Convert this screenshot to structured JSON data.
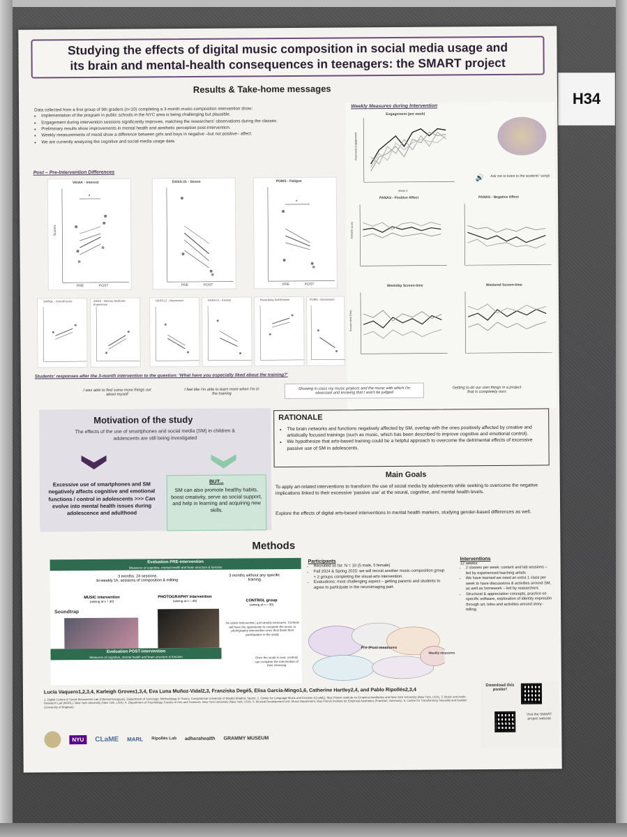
{
  "booth_tag": "H34",
  "poster": {
    "title_line1": "Studying the effects of digital music composition in social media usage and",
    "title_line2": "its brain and mental-health consequences in teenagers: the SMART project",
    "results": {
      "heading": "Results & Take-home messages",
      "intro": "Data collected from a first group of 9th graders (n=10) completing a 3-month music-composition intervention show:",
      "bullets": [
        "Implementation of the program in public schools in the NYC area is being challenging but plausible.",
        "Engagement during intervention sessions significantly improves, matching the researchers' observations during the classes.",
        "Preliminary results show improvements in mental health and aesthetic perception post-intervention.",
        "Weekly measurements of mood show a difference between girls and boys in negative –but not positive– affect.",
        "We are currently analyzing the cognitive and social-media usage data."
      ],
      "post_pre_heading": "Post – Pre-Intervention Differences",
      "plot_titles": [
        "VAIAK - Interest",
        "DASS-21 - Stress",
        "POMS - Fatigue"
      ],
      "small_plot_titles": [
        "SWSQL - Overall score",
        "AIN16 - Intrinsic Aesthetic Experience",
        "DASS-21 - Depression",
        "DASS-21 - Anxiety",
        "Rosenberg Self-Esteem",
        "POMS - Depression"
      ],
      "axis_pre": "PRE",
      "axis_post": "POST",
      "axis_scores": "Scores",
      "weekly_heading": "Weekly Measures during Intervention",
      "engagement_title": "Engagement (per week)",
      "engagement_ylabel": "Assessed engagement",
      "week_label": "Week #",
      "ask_me": "Ask me to listen to the students' songs",
      "panas_pos": "PANAS - Positive Affect",
      "panas_neg": "PANAS - Negative Affect",
      "panas_ylabel": "PANAS score",
      "screen_weekday": "Weekday Screen-time",
      "screen_weekend": "Weekend Screen-time",
      "screen_ylabel": "Screen time (hrs)",
      "students_heading": "Students' responses after the 3-month intervention to the question: 'What have you especially liked about the training?'",
      "quotes": [
        "I was able to find some more things out about myself",
        "I feel like I'm able to learn more when I'm in the training",
        "Showing in class my music projects and the music with which I'm obsessed and knowing that I won't be judged",
        "Getting to do our own things in a project that is completely ours"
      ]
    },
    "motivation": {
      "heading": "Motivation of the study",
      "intro": "The effects of the use of smartphones and social media (SM) in children & adolescents are still being investigated",
      "left_text": "Excessive use of smartphones and SM negatively affects cognitive and emotional functions / control in adolescents >>> Can evolve into mental health issues during adolescence and adulthood",
      "but": "BUT...",
      "right_text": "SM can also promote healthy habits, boost creativity, serve as social support, and help in learning and acquiring new skills."
    },
    "rationale": {
      "heading": "RATIONALE",
      "bullets": [
        "The brain networks and functions negatively affected by SM, overlap with the ones positively affected by creative and artistically focused trainings (such as music, which has been described to improve cognitive and emotional control).",
        "We hypothesize that arts-based training could be a helpful approach to overcome the detrimental effects of excessive passive use of SM in adolescents."
      ]
    },
    "goals": {
      "heading": "Main Goals",
      "p1": "To apply art-related interventions to transform the use of social media by adolescents while seeking to overcome the negative implications linked to their excessive 'passive use' at the neural, cognitive, and mental health levels.",
      "p2": "Explore the effects of digital arts-based interventions in mental health markers, studying gender-based differences as well."
    },
    "methods": {
      "heading": "Methods",
      "eval_pre": "Evaluation PRE-intervention",
      "eval_pre_sub": "Measures of cognitive, mental-health and brain structure & function",
      "arm1_head": "3 months: 24 sessions",
      "arm1_sub": "bi-weekly 1h. sessions of composition & editing",
      "arm2_head": "3 months without any specific training",
      "music_int": "MUSIC intervention",
      "music_sub": "(aiming at n = 30)",
      "photo_int": "PHOTOGRAPHY intervention",
      "photo_sub": "(aiming at n = 30)",
      "control": "CONTROL group",
      "control_sub": "(aiming at n = 30)",
      "control_note": "No active intervention, just weekly measures. Controls will have the opportunity to complete the music or photography intervention once they finish their participation in the study.",
      "soundtrap": "Soundtrap",
      "eval_post": "Evaluation POST-intervention",
      "eval_post_sub": "Measures of cognitive, mental health and brain structure & function",
      "post_note": "Once the study is over, controls can complete the intervention of their choosing",
      "participants_head": "Participants",
      "participants": [
        "Recruited so far: N = 10 (5 male, 5 female)",
        "Fall 2024 & Spring 2025: we will recruit another music-composition group + 2 groups completing the visual-arts intervention.",
        "Evaluations: most challenging aspect – getting parents and students to agree to participate in the neuroimaging part."
      ],
      "pre_post": "Pre-/Post-measures",
      "weekly_measures": "Weekly measures",
      "interventions_head": "Interventions",
      "interventions_intro": "12 weeks:",
      "interventions": [
        "2 classes per week: content and lab sessions – led by experienced teaching artists",
        "We have learned we need an extra 1 class per week to have discussions & activities around SM, as well as homework – led by researchers",
        "Structural & appreciation concepts, practice on specific software, exploration of identity expresión through art, tolos and activities around story-telling."
      ]
    },
    "authors": "Lucía Vaquero1,2,3,4, Karleigh Groves1,3,4, Eva Luna Muñoz-Vidal2,3, Franziska Degé5, Elisa García-Mingo1,6, Catherine Hartley2,4, and Pablo Ripollés2,3,4",
    "affiliations": "1. Digital Culture & Social Movements Lab (Cibersomosaguas), Department of Sociology: Methodology & Theory, Complutense University of Madrid (Madrid, Spain). 2. Center for Language Music and Emotion (CLaME), Max Planck Institute for Empirical Aesthetics and New York University (New York, USA). 3. Music and Audio Research Lab (MARL), New York University (New York, USA). 4. Department of Psychology, Faculty of Arts and Sciences, New York University (New York, USA). 5. Musical Development Unit, Music Department, Max Planck Institute for Empirical Aesthetics (Frankfurt, Germany). 6. Centre for Transforming Sexuality and Gender (University of Brighton).",
    "download": "Download this poster!",
    "visit": "Visit the SMART project website",
    "logos": [
      "NYU",
      "CLaME",
      "MARL",
      "Ripollés Lab",
      "adherahealth",
      "GRAMMY MUSEUM"
    ]
  }
}
